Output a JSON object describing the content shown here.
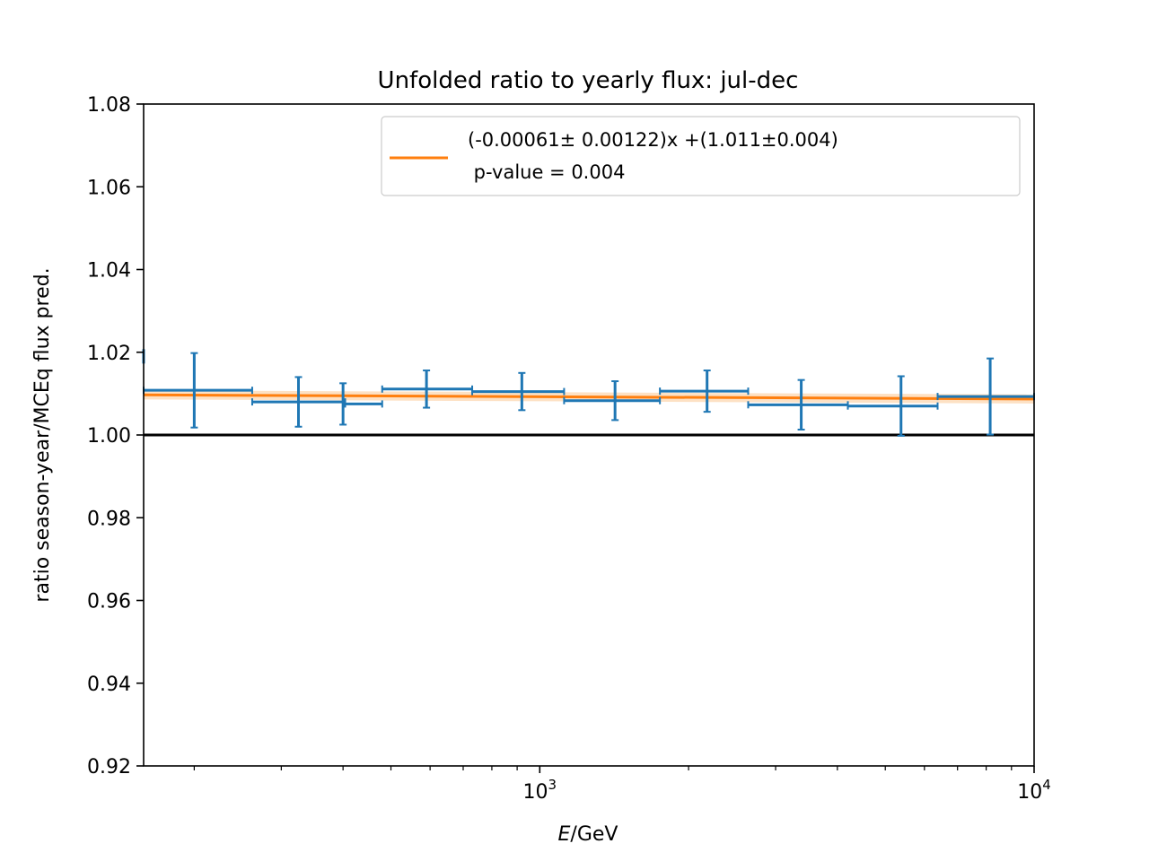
{
  "chart_data": {
    "type": "scatter",
    "title": "Unfolded ratio to yearly flux: jul-dec",
    "xlabel_var": "E",
    "xlabel_unit": "/GeV",
    "ylabel": "ratio season-year/MCEq flux pred.",
    "xscale": "log",
    "xlim": [
      158,
      10000
    ],
    "ylim": [
      0.92,
      1.08
    ],
    "yticks": [
      "0.92",
      "0.94",
      "0.96",
      "0.98",
      "1.00",
      "1.02",
      "1.04",
      "1.06",
      "1.08"
    ],
    "xticks": [
      {
        "value": 1000,
        "base": "10",
        "exp": "3"
      },
      {
        "value": 10000,
        "base": "10",
        "exp": "4"
      }
    ],
    "reference_line": 1.0,
    "series": [
      {
        "kind": "points",
        "color": "#1f77b4",
        "points": [
          {
            "x_lo": 158,
            "x_hi": 262,
            "x": 200,
            "y": 1.0108,
            "yerr": 0.009
          },
          {
            "x_lo": 262,
            "x_hi": 404,
            "x": 325,
            "y": 1.008,
            "yerr": 0.006
          },
          {
            "x_lo": 404,
            "x_hi": 480,
            "x": 400,
            "y": 1.0075,
            "yerr": 0.005
          },
          {
            "x_lo": 480,
            "x_hi": 730,
            "x": 590,
            "y": 1.0111,
            "yerr": 0.0045
          },
          {
            "x_lo": 730,
            "x_hi": 1120,
            "x": 920,
            "y": 1.0105,
            "yerr": 0.0045
          },
          {
            "x_lo": 1120,
            "x_hi": 1750,
            "x": 1420,
            "y": 1.0083,
            "yerr": 0.0047
          },
          {
            "x_lo": 1750,
            "x_hi": 2640,
            "x": 2180,
            "y": 1.0106,
            "yerr": 0.005
          },
          {
            "x_lo": 2640,
            "x_hi": 4200,
            "x": 3380,
            "y": 1.0073,
            "yerr": 0.006
          },
          {
            "x_lo": 4200,
            "x_hi": 6380,
            "x": 5380,
            "y": 1.007,
            "yerr": 0.0072
          },
          {
            "x_lo": 6380,
            "x_hi": 10000,
            "x": 8150,
            "y": 1.0093,
            "yerr": 0.0092
          }
        ],
        "edge_point": {
          "x": 158,
          "y": 1.019
        }
      },
      {
        "kind": "fit",
        "color": "#ff7f0e",
        "band_color": "#fdd9b5",
        "y_start": 1.0097,
        "y_end": 1.0087,
        "band_halfwidth": 0.0011,
        "legend": "(-0.00061± 0.00122)x +(1.011±0.004)",
        "legend_line2": " p-value = 0.004"
      }
    ],
    "legend_position": "upper right"
  }
}
